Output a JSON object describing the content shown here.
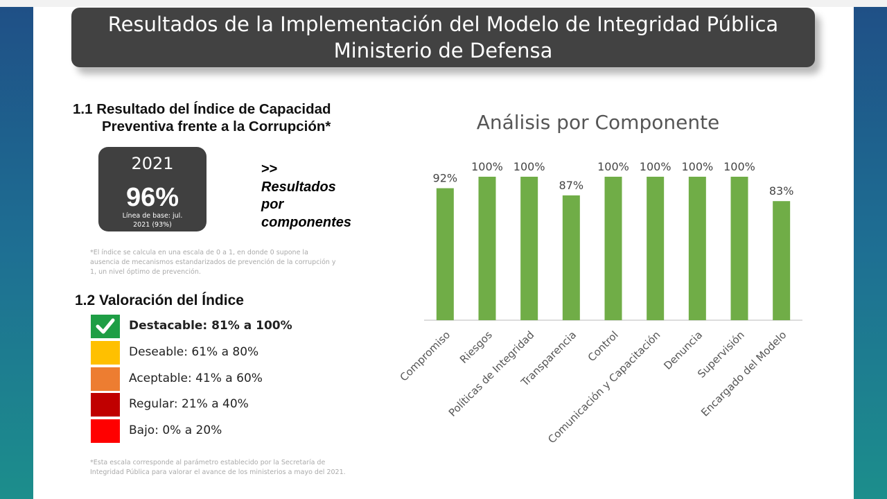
{
  "header": {
    "title_line1": "Resultados de la Implementación del Modelo de Integridad Pública",
    "title_line2": "Ministerio de Defensa"
  },
  "section1": {
    "title_line1": "1.1 Resultado del Índice de Capacidad",
    "title_line2": "Preventiva frente a la Corrupción*",
    "kpi": {
      "year": "2021",
      "value": "96%",
      "baseline_line1": "Línea de base: jul.",
      "baseline_line2": "2021 (93%)"
    },
    "results_arrow": ">>",
    "results_label_1": "Resultados",
    "results_label_2": "por",
    "results_label_3": "componentes",
    "footnote": "*El índice se calcula en una escala de 0 a 1, en donde 0 supone la ausencia de mecanismos estandarizados de prevención de la corrupción y 1, un nivel óptimo de prevención."
  },
  "section2": {
    "title": "1.2 Valoración del Índice",
    "legend": [
      {
        "label": "Destacable: 81% a 100%",
        "color": "#1e9e45",
        "checked": true
      },
      {
        "label": "Deseable: 61% a 80%",
        "color": "#ffc000",
        "checked": false
      },
      {
        "label": "Aceptable: 41% a 60%",
        "color": "#ed7d31",
        "checked": false
      },
      {
        "label": "Regular: 21% a 40%",
        "color": "#c00000",
        "checked": false
      },
      {
        "label": "Bajo: 0% a 20%",
        "color": "#ff0000",
        "checked": false
      }
    ],
    "footnote": "*Esta escala corresponde al parámetro establecido por la Secretaría de Integridad Pública para valorar el avance de los ministerios a mayo del 2021."
  },
  "chart_data": {
    "type": "bar",
    "title": "Análisis por Componente",
    "categories": [
      "Compromiso",
      "Riesgos",
      "Políticas de Integridad",
      "Transparencia",
      "Control",
      "Comunicación y Capacitación",
      "Denuncia",
      "Supervisión",
      "Encargado del Modelo"
    ],
    "values": [
      92,
      100,
      100,
      87,
      100,
      100,
      100,
      100,
      83
    ],
    "value_labels": [
      "92%",
      "100%",
      "100%",
      "87%",
      "100%",
      "100%",
      "100%",
      "100%",
      "83%"
    ],
    "ylim": [
      0,
      100
    ],
    "bar_color": "#70ad47",
    "grid": false,
    "legend": "none"
  }
}
